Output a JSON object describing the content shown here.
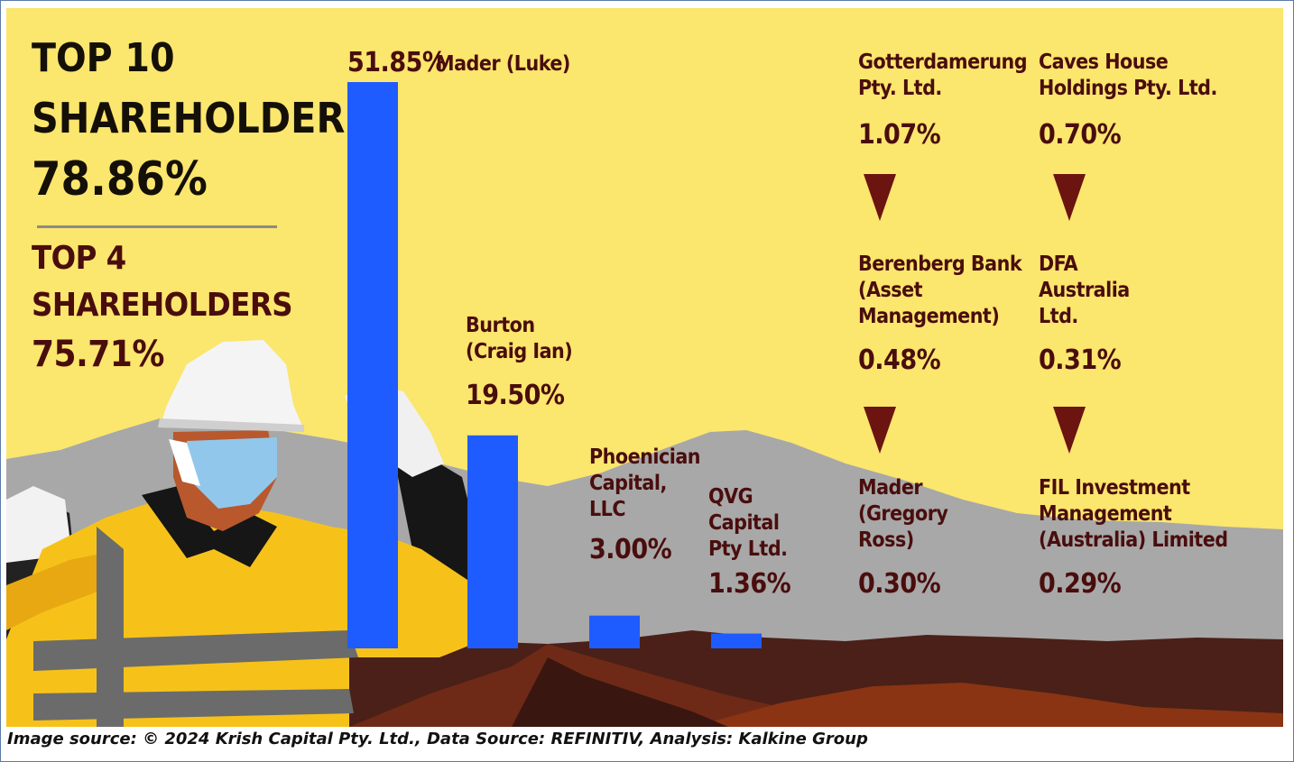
{
  "header": {
    "top10_line1": "TOP 10",
    "top10_line2": "SHAREHOLDERS",
    "top10_value": "78.86%",
    "top4_line1": "TOP 4",
    "top4_line2": "SHAREHOLDERS",
    "top4_value": "75.71%"
  },
  "chart_data": {
    "type": "bar",
    "categories": [
      "Mader (Luke)",
      "Burton\n(Craig Ian)",
      "Phoenician\nCapital,\nLLC",
      "QVG\nCapital\nPty Ltd."
    ],
    "values": [
      51.85,
      19.5,
      3.0,
      1.36
    ],
    "value_labels": [
      "51.85%",
      "19.50%",
      "3.00%",
      "1.36%"
    ],
    "bar_color": "#1f5cff"
  },
  "others": [
    {
      "name": "Gotterdamerung\nPty. Ltd.",
      "value": "1.07%"
    },
    {
      "name": "Caves House\nHoldings Pty. Ltd.",
      "value": "0.70%"
    },
    {
      "name": "Berenberg Bank\n(Asset\nManagement)",
      "value": "0.48%"
    },
    {
      "name": "DFA\nAustralia\nLtd.",
      "value": "0.31%"
    },
    {
      "name": "Mader\n(Gregory\nRoss)",
      "value": "0.30%"
    },
    {
      "name": "FIL Investment\nManagement\n(Australia) Limited",
      "value": "0.29%"
    }
  ],
  "footer": {
    "source": "Image source: © 2024 Krish Capital Pty. Ltd., Data Source: REFINITIV, Analysis: Kalkine Group"
  },
  "colors": {
    "background": "#fbe66e",
    "text": "#4a0d0d",
    "arrow": "#6b1410",
    "mountain": "#a9a9a9",
    "ground": "#4a2018"
  }
}
